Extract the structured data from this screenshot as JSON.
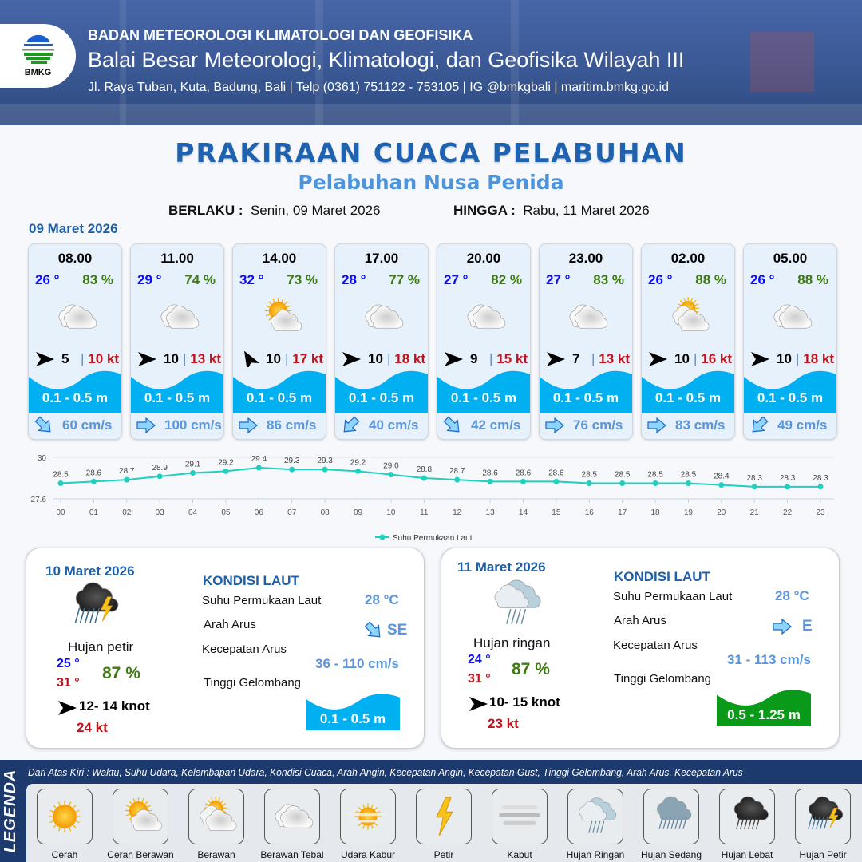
{
  "header": {
    "agency": "BADAN METEOROLOGI KLIMATOLOGI DAN GEOFISIKA",
    "office": "Balai Besar Meteorologi, Klimatologi, dan Geofisika Wilayah III",
    "contact": "Jl. Raya Tuban, Kuta, Badung, Bali | Telp (0361) 751122 - 753105 | IG @bmkgbali | maritim.bmkg.go.id",
    "logo_text": "BMKG"
  },
  "title": "PRAKIRAAN CUACA PELABUHAN",
  "subtitle": "Pelabuhan Nusa Penida",
  "validity": {
    "from_label": "BERLAKU :",
    "from": "Senin, 09 Maret 2026",
    "to_label": "HINGGA :",
    "to": "Rabu, 11 Maret 2026"
  },
  "day1": {
    "date": "09 Maret 2026",
    "forecasts": [
      {
        "time": "08.00",
        "temp": "26 °",
        "humidity": "83 %",
        "icon": "berawan-tebal",
        "wind_dir_deg": 0,
        "wind": "5",
        "gust": "10 kt",
        "wave": "0.1 - 0.5 m",
        "current_dir_deg": 45,
        "current": "60 cm/s"
      },
      {
        "time": "11.00",
        "temp": "29 °",
        "humidity": "74 %",
        "icon": "berawan-tebal",
        "wind_dir_deg": 0,
        "wind": "10",
        "gust": "13 kt",
        "wave": "0.1 - 0.5 m",
        "current_dir_deg": 0,
        "current": "100 cm/s"
      },
      {
        "time": "14.00",
        "temp": "32 °",
        "humidity": "73 %",
        "icon": "cerah-berawan",
        "wind_dir_deg": -120,
        "wind": "10",
        "gust": "17 kt",
        "wave": "0.1 - 0.5 m",
        "current_dir_deg": 0,
        "current": "86 cm/s"
      },
      {
        "time": "17.00",
        "temp": "28 °",
        "humidity": "77 %",
        "icon": "berawan-tebal",
        "wind_dir_deg": 0,
        "wind": "10",
        "gust": "18 kt",
        "wave": "0.1 - 0.5 m",
        "current_dir_deg": 135,
        "current": "40 cm/s"
      },
      {
        "time": "20.00",
        "temp": "27 °",
        "humidity": "82 %",
        "icon": "berawan-tebal",
        "wind_dir_deg": 0,
        "wind": "9",
        "gust": "15 kt",
        "wave": "0.1 - 0.5 m",
        "current_dir_deg": 45,
        "current": "42 cm/s"
      },
      {
        "time": "23.00",
        "temp": "27 °",
        "humidity": "83 %",
        "icon": "berawan-tebal",
        "wind_dir_deg": 0,
        "wind": "7",
        "gust": "13 kt",
        "wave": "0.1 - 0.5 m",
        "current_dir_deg": 0,
        "current": "76 cm/s"
      },
      {
        "time": "02.00",
        "temp": "26 °",
        "humidity": "88 %",
        "icon": "berawan",
        "wind_dir_deg": 0,
        "wind": "10",
        "gust": "16 kt",
        "wave": "0.1 - 0.5 m",
        "current_dir_deg": 0,
        "current": "83 cm/s"
      },
      {
        "time": "05.00",
        "temp": "26 °",
        "humidity": "88 %",
        "icon": "berawan-tebal",
        "wind_dir_deg": 0,
        "wind": "10",
        "gust": "18 kt",
        "wave": "0.1 - 0.5 m",
        "current_dir_deg": 135,
        "current": "49 cm/s"
      }
    ]
  },
  "chart_data": {
    "type": "line",
    "x": [
      "00",
      "01",
      "02",
      "03",
      "04",
      "05",
      "06",
      "07",
      "08",
      "09",
      "10",
      "11",
      "12",
      "13",
      "14",
      "15",
      "16",
      "17",
      "18",
      "19",
      "20",
      "21",
      "22",
      "23"
    ],
    "series": [
      {
        "name": "Suhu Permukaan Laut",
        "values": [
          28.5,
          28.6,
          28.7,
          28.9,
          29.1,
          29.2,
          29.4,
          29.3,
          29.3,
          29.2,
          29.0,
          28.8,
          28.7,
          28.6,
          28.6,
          28.6,
          28.5,
          28.5,
          28.5,
          28.5,
          28.4,
          28.3,
          28.3,
          28.3
        ],
        "color": "#1fcfbf"
      }
    ],
    "yticks": [
      "30",
      "27.6"
    ],
    "ylim": [
      27.6,
      30
    ],
    "legend": "bottom",
    "grid": true
  },
  "panels": [
    {
      "date": "10 Maret 2026",
      "icon": "hujan-petir",
      "condition": "Hujan petir",
      "tmin": "25 °",
      "tmax": "31 °",
      "humidity": "87 %",
      "wind": "12- 14 knot",
      "gust": "24 kt",
      "sea_title": "KONDISI LAUT",
      "sst_label": "Suhu Permukaan Laut",
      "sst": "28 °C",
      "dir_label": "Arah Arus",
      "dir": "SE",
      "dir_deg": 45,
      "speed_label": "Kecepatan Arus",
      "speed": "36 - 110 cm/s",
      "wave_label": "Tinggi Gelombang",
      "wave": "0.1 - 0.5 m",
      "wave_color": "#00b0f0"
    },
    {
      "date": "11 Maret 2026",
      "icon": "hujan-ringan",
      "condition": "Hujan ringan",
      "tmin": "24 °",
      "tmax": "31 °",
      "humidity": "87 %",
      "wind": "10- 15 knot",
      "gust": "23 kt",
      "sea_title": "KONDISI LAUT",
      "sst_label": "Suhu Permukaan Laut",
      "sst": "28 °C",
      "dir_label": "Arah Arus",
      "dir": "E",
      "dir_deg": 0,
      "speed_label": "Kecepatan Arus",
      "speed": "31 - 113 cm/s",
      "wave_label": "Tinggi Gelombang",
      "wave": "0.5 - 1.25 m",
      "wave_color": "#0a9a1a"
    }
  ],
  "legend": {
    "title": "LEGENDA",
    "description": "Dari Atas Kiri : Waktu, Suhu Udara, Kelembapan Udara, Kondisi Cuaca, Arah Angin, Kecepatan Angin, Kecepatan Gust, Tinggi Gelombang, Arah Arus, Kecepatan Arus",
    "items": [
      {
        "name": "Cerah",
        "icon": "cerah"
      },
      {
        "name": "Cerah Berawan",
        "icon": "cerah-berawan"
      },
      {
        "name": "Berawan",
        "icon": "berawan"
      },
      {
        "name": "Berawan Tebal",
        "icon": "berawan-tebal"
      },
      {
        "name": "Udara Kabur",
        "icon": "udara-kabur"
      },
      {
        "name": "Petir",
        "icon": "petir"
      },
      {
        "name": "Kabut",
        "icon": "kabut"
      },
      {
        "name": "Hujan Ringan",
        "icon": "hujan-ringan"
      },
      {
        "name": "Hujan Sedang",
        "icon": "hujan-sedang"
      },
      {
        "name": "Hujan Lebat",
        "icon": "hujan-lebat"
      },
      {
        "name": "Hujan Petir",
        "icon": "hujan-petir"
      }
    ]
  },
  "colors": {
    "wave": "#00b0f0",
    "title": "#1f63b0",
    "temp": "#0b0bf5",
    "humidity": "#3f7a12",
    "gust": "#c0121a",
    "current": "#5b95db"
  }
}
